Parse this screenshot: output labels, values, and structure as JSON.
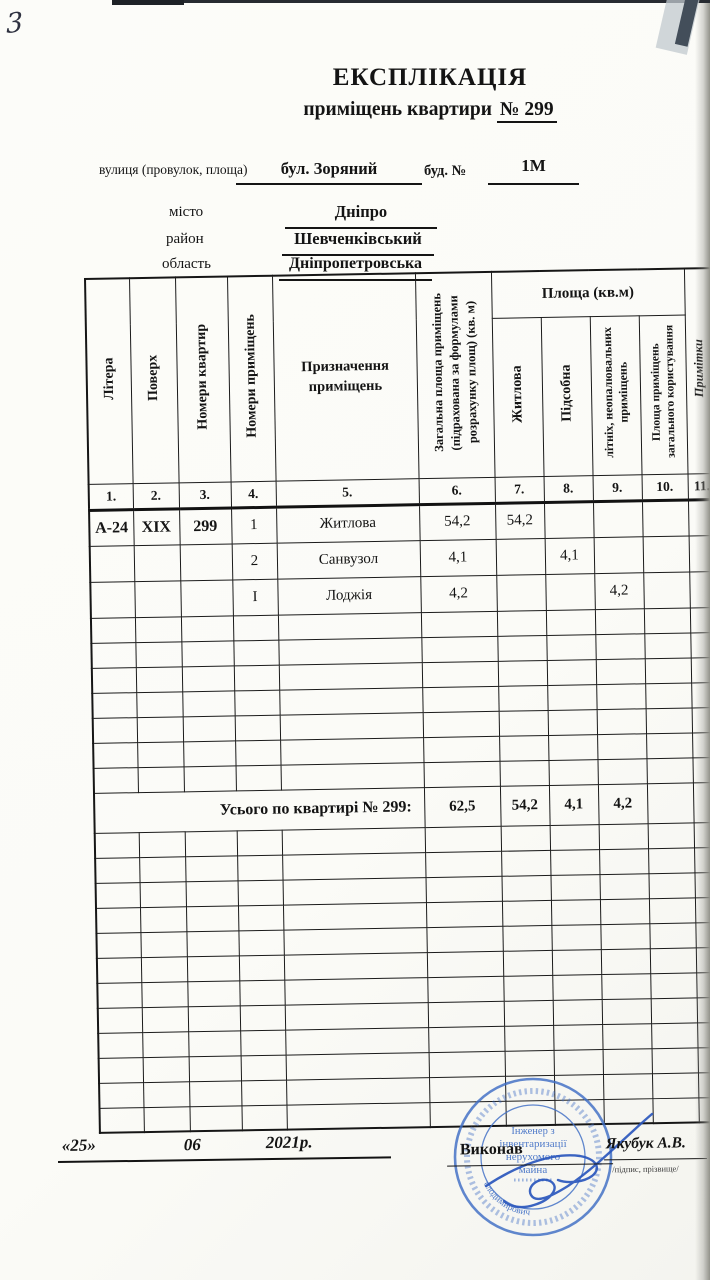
{
  "page": {
    "handwritten_number": "3",
    "title": "ЕКСПЛІКАЦІЯ",
    "subtitle_prefix": "приміщень квартири",
    "subtitle_number": "№ 299"
  },
  "address": {
    "street_label": "вулиця (провулок, площа)",
    "street_value": "бул. Зоряний",
    "building_label": "буд. №",
    "building_value": "1М",
    "city_label": "місто",
    "city_value": "Дніпро",
    "district_label": "район",
    "district_value": "Шевченківський",
    "region_label": "область",
    "region_value": "Дніпропетровська"
  },
  "table": {
    "headers": {
      "col1": "Літера",
      "col2": "Поверх",
      "col3": "Номери квартир",
      "col4": "Номери приміщень",
      "col5": "Призначення приміщень",
      "col6": "Загальна площа приміщень (підрахована за формулами розрахунку площ) (кв. м)",
      "area_group": "Площа (кв.м)",
      "col7": "Житлова",
      "col8": "Підсобна",
      "col9": "літніх, неопалювальних приміщень",
      "col10": "Площа приміщень загального користування",
      "col11": "Примітки"
    },
    "column_numbers": [
      "1.",
      "2.",
      "3.",
      "4.",
      "5.",
      "6.",
      "7.",
      "8.",
      "9.",
      "10.",
      "11."
    ],
    "rows": [
      {
        "litera": "А-24",
        "floor": "XIX",
        "apt": "299",
        "room_no": "1",
        "purpose": "Житлова",
        "total": "54,2",
        "living": "54,2",
        "utility": "",
        "summer": "",
        "common": "",
        "notes": ""
      },
      {
        "litera": "",
        "floor": "",
        "apt": "",
        "room_no": "2",
        "purpose": "Санвузол",
        "total": "4,1",
        "living": "",
        "utility": "4,1",
        "summer": "",
        "common": "",
        "notes": ""
      },
      {
        "litera": "",
        "floor": "",
        "apt": "",
        "room_no": "I",
        "purpose": "Лоджія",
        "total": "4,2",
        "living": "",
        "utility": "",
        "summer": "4,2",
        "common": "",
        "notes": ""
      }
    ],
    "empty_rows_before_total": 7,
    "empty_rows_after_total": 12,
    "total": {
      "label": "Усього по квартирі № 299:",
      "total": "62,5",
      "living": "54,2",
      "utility": "4,1",
      "summer": "4,2"
    }
  },
  "footer": {
    "date_day": "«25»",
    "date_month": "06",
    "date_year": "2021р.",
    "executor_label": "Виконав",
    "executor_name": "Якубук А.В.",
    "signature_caption": "/підпис, прізвище/"
  },
  "stamp": {
    "line1": "Інженер з",
    "line2": "інвентаризації",
    "line3": "нерухомого",
    "line4": "майна",
    "arc_text": "Андрій Володимирович",
    "color": "#3f6ec5"
  }
}
